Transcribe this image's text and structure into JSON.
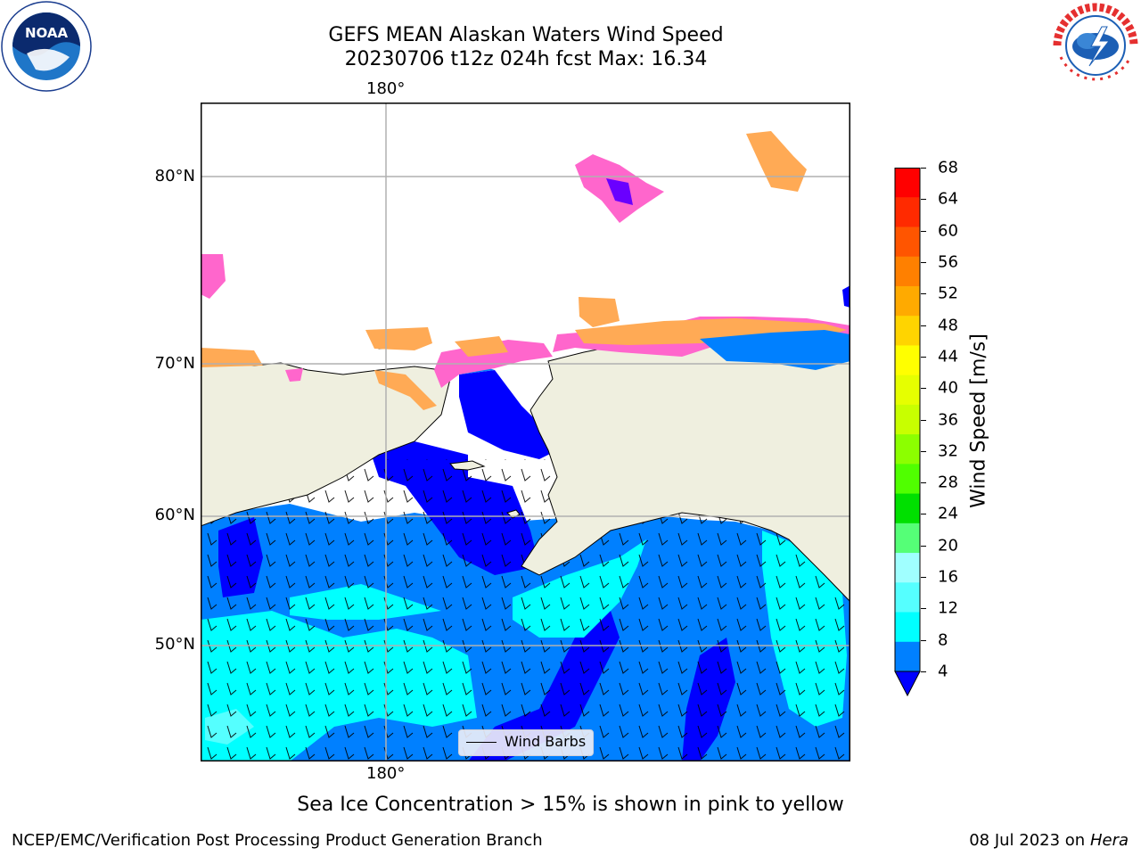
{
  "header": {
    "title": "GEFS MEAN Alaskan Waters Wind Speed",
    "subtitle": "20230706 t12z 024h fcst   Max: 16.34"
  },
  "logos": {
    "left": "NOAA",
    "right": "NATIONAL WEATHER SERVICE"
  },
  "map": {
    "lon_label_top": "180°",
    "lon_label_bottom": "180°",
    "lat_labels": [
      "80°N",
      "70°N",
      "60°N",
      "50°N"
    ],
    "legend_label": "Wind Barbs",
    "colors": {
      "land": "#efefdf",
      "wind_4_8": "#0080ff",
      "wind_lt4": "#0000ff",
      "wind_8_12": "#00ffff",
      "wind_12_16": "#40ffff",
      "ice_pink": "#ff66cc",
      "ice_orange": "#ffaa55",
      "ice_purple": "#aa44ff"
    }
  },
  "colorbar": {
    "label": "Wind Speed [m/s]",
    "ticks": [
      "68",
      "64",
      "60",
      "56",
      "52",
      "48",
      "44",
      "40",
      "36",
      "32",
      "28",
      "24",
      "20",
      "16",
      "12",
      "8",
      "4"
    ],
    "colors": [
      "#ff0000",
      "#ff2a00",
      "#ff5500",
      "#ff8000",
      "#ffaa00",
      "#ffd400",
      "#ffff00",
      "#e6ff00",
      "#c8ff00",
      "#8cff00",
      "#50ff00",
      "#00e000",
      "#55ff77",
      "#a0ffff",
      "#55ffff",
      "#00ffff",
      "#0080ff"
    ],
    "under_color": "#0000ff"
  },
  "footer": {
    "note": "Sea Ice Concentration > 15% is shown in pink to yellow",
    "left": "NCEP/EMC/Verification Post Processing Product Generation Branch",
    "right_date": "08 Jul 2023 on ",
    "right_host": "Hera"
  }
}
